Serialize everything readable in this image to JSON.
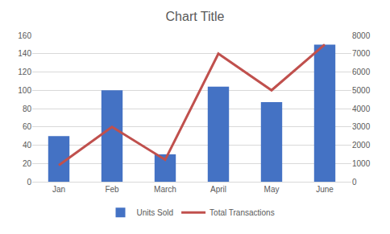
{
  "chart_data": {
    "type": "bar",
    "title": "Chart Title",
    "categories": [
      "Jan",
      "Feb",
      "March",
      "April",
      "May",
      "June"
    ],
    "series": [
      {
        "name": "Units Sold",
        "type": "bar",
        "color": "#4472c4",
        "values": [
          50,
          100,
          30,
          104,
          87,
          150
        ]
      },
      {
        "name": "Total Transactions",
        "type": "line",
        "color": "#c0504d",
        "axis": "y2",
        "values": [
          900,
          3000,
          1200,
          7000,
          5000,
          7500
        ]
      }
    ],
    "ylim": [
      0,
      160
    ],
    "yticks": [
      0,
      20,
      40,
      60,
      80,
      100,
      120,
      140,
      160
    ],
    "y2lim": [
      0,
      8000
    ],
    "y2ticks": [
      0,
      1000,
      2000,
      3000,
      4000,
      5000,
      6000,
      7000,
      8000
    ],
    "grid": true,
    "legend": "bottom"
  }
}
